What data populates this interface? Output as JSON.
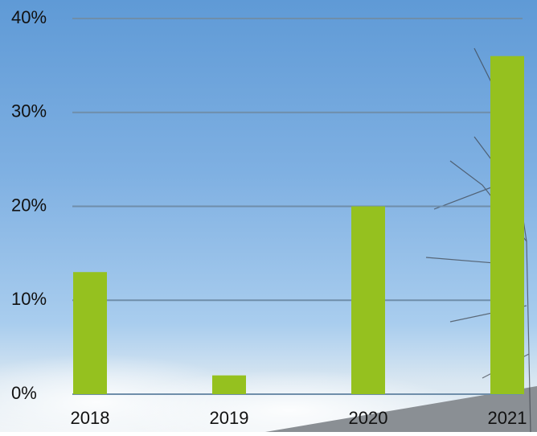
{
  "chart_data": {
    "type": "bar",
    "categories": [
      "2018",
      "2019",
      "2020",
      "2021"
    ],
    "values": [
      13,
      2,
      20,
      36
    ],
    "color": "#95c11f",
    "ylim": [
      0,
      40
    ],
    "yticks": [
      {
        "value": 0,
        "label": "0%"
      },
      {
        "value": 10,
        "label": "10%"
      },
      {
        "value": 20,
        "label": "20%"
      },
      {
        "value": 30,
        "label": "30%"
      },
      {
        "value": 40,
        "label": "40%"
      }
    ],
    "grid": true
  }
}
